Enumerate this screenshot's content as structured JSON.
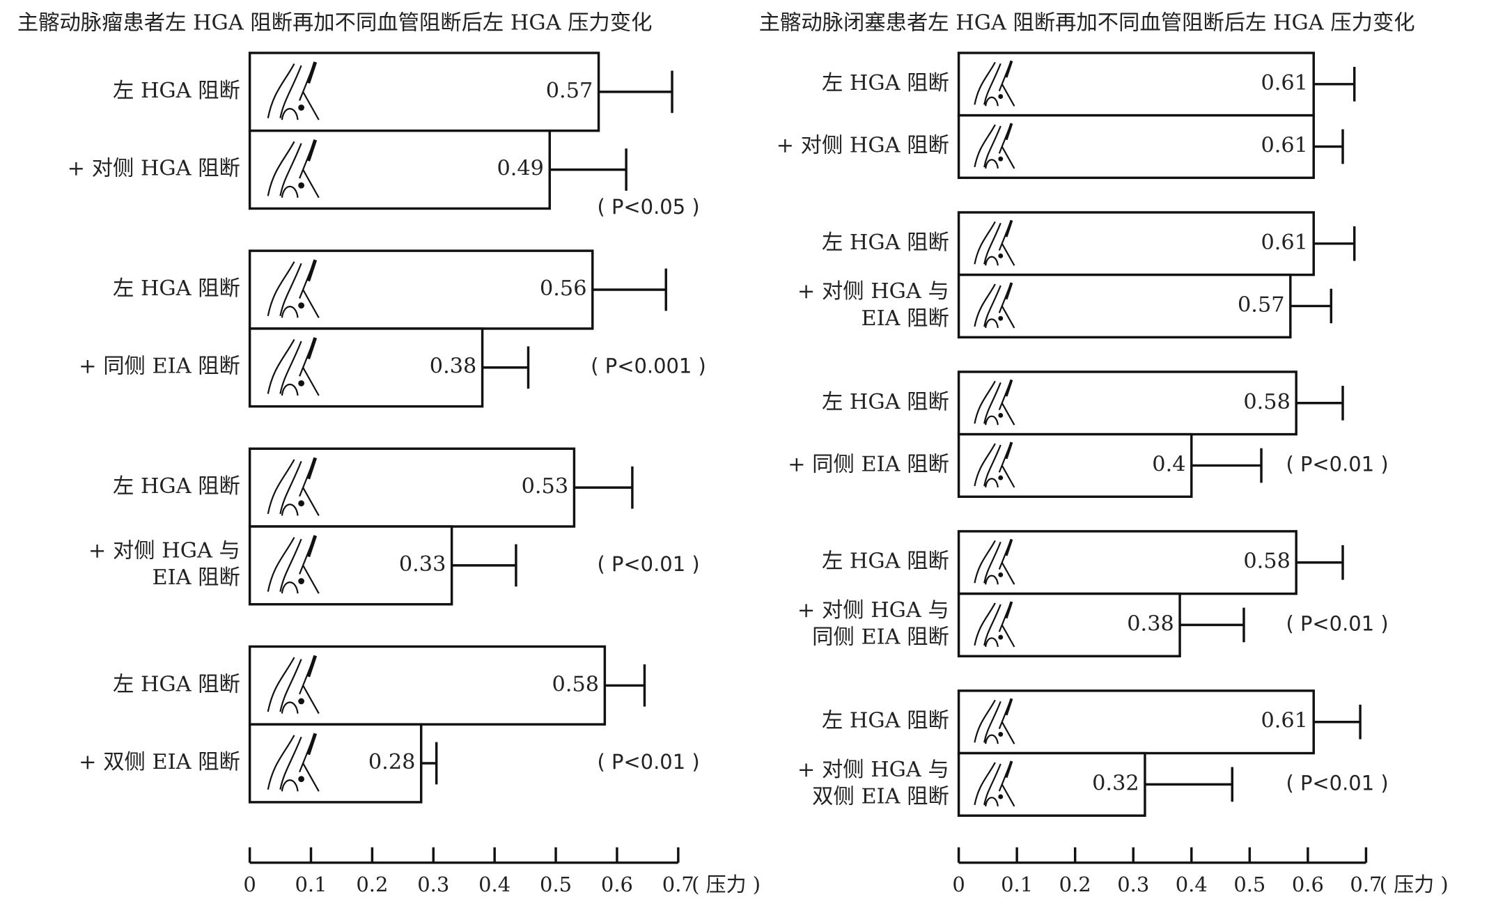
{
  "chart_data": [
    {
      "type": "bar",
      "orientation": "horizontal",
      "title": "主髂动脉瘤患者左 HGA 阻断再加不同血管阻断后左 HGA 压力变化",
      "groups": [
        {
          "categories": [
            "左 HGA 阻断",
            "+ 对侧 HGA 阻断"
          ],
          "values": [
            0.57,
            0.49
          ],
          "errors": [
            0.12,
            0.125
          ],
          "annotation": "( P<0.05 )"
        },
        {
          "categories": [
            "左 HGA 阻断",
            "+ 同侧 EIA 阻断"
          ],
          "values": [
            0.56,
            0.38
          ],
          "errors": [
            0.12,
            0.075
          ],
          "annotation": "( P<0.001 )"
        },
        {
          "categories": [
            "左 HGA 阻断",
            [
              "+ 对侧 HGA 与",
              "EIA 阻断"
            ]
          ],
          "values": [
            0.53,
            0.33
          ],
          "errors": [
            0.095,
            0.105
          ],
          "annotation": "( P<0.01 )"
        },
        {
          "categories": [
            "左 HGA 阻断",
            "+ 双侧 EIA 阻断"
          ],
          "values": [
            0.58,
            0.28
          ],
          "errors": [
            0.065,
            0.025
          ],
          "annotation": "( P<0.01 )"
        }
      ],
      "xlim": [
        0,
        0.7
      ],
      "xticks": [
        0,
        0.1,
        0.2,
        0.3,
        0.4,
        0.5,
        0.6,
        0.7
      ],
      "xlabel": "( 压力 )",
      "color": "#ffffff"
    },
    {
      "type": "bar",
      "orientation": "horizontal",
      "title": "主髂动脉闭塞患者左 HGA 阻断再加不同血管阻断后左 HGA 压力变化",
      "groups": [
        {
          "categories": [
            "左 HGA 阻断",
            "+ 对侧 HGA 阻断"
          ],
          "values": [
            0.61,
            0.61
          ],
          "errors": [
            0.07,
            0.05
          ]
        },
        {
          "categories": [
            "左 HGA 阻断",
            [
              "+ 对侧 HGA 与",
              "EIA 阻断"
            ]
          ],
          "values": [
            0.61,
            0.57
          ],
          "errors": [
            0.07,
            0.07
          ]
        },
        {
          "categories": [
            "左 HGA 阻断",
            "+ 同侧 EIA 阻断"
          ],
          "values": [
            0.58,
            0.4
          ],
          "errors": [
            0.08,
            0.12
          ],
          "annotation": "( P<0.01 )"
        },
        {
          "categories": [
            "左 HGA 阻断",
            [
              "+ 对侧 HGA 与",
              "同侧 EIA 阻断"
            ]
          ],
          "values": [
            0.58,
            0.38
          ],
          "errors": [
            0.08,
            0.11
          ],
          "annotation": "( P<0.01 )"
        },
        {
          "categories": [
            "左 HGA 阻断",
            [
              "+ 对侧 HGA 与",
              "双侧 EIA 阻断"
            ]
          ],
          "values": [
            0.61,
            0.32
          ],
          "errors": [
            0.08,
            0.15
          ],
          "annotation": "( P<0.01 )"
        }
      ],
      "xlim": [
        0,
        0.7
      ],
      "xticks": [
        0,
        0.1,
        0.2,
        0.3,
        0.4,
        0.5,
        0.6,
        0.7
      ],
      "xlabel": "( 压力 )",
      "color": "#ffffff"
    }
  ]
}
